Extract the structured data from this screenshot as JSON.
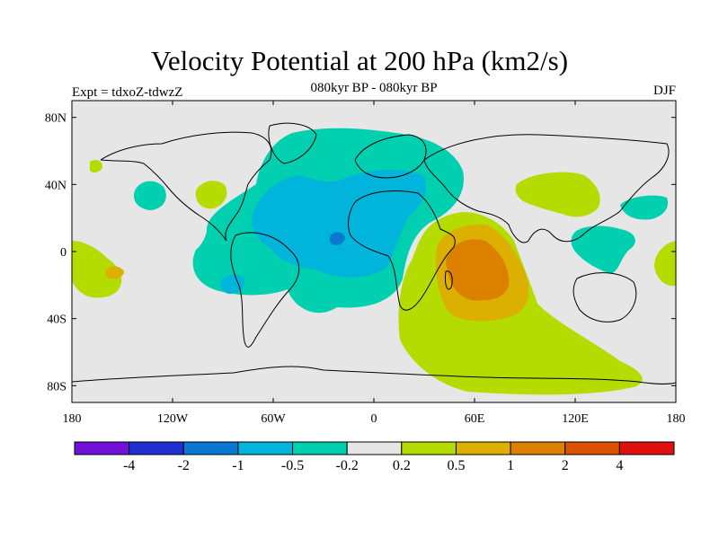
{
  "title": "Velocity Potential at 200 hPa (km2/s)",
  "subtitle": "080kyr BP - 080kyr BP",
  "experiment": "Expt = tdxoZ-tdwzZ",
  "season": "DJF",
  "map": {
    "projection": "cylindrical equidistant",
    "lon_range": [
      -180,
      180
    ],
    "lat_range": [
      -90,
      90
    ],
    "background_color": "#e6e6e6",
    "lat_ticks": [
      "80N",
      "40N",
      "0",
      "40S",
      "80S"
    ],
    "lon_ticks": [
      "180",
      "120W",
      "60W",
      "0",
      "60E",
      "120E",
      "180"
    ]
  },
  "colorbar": {
    "labels": [
      "-4",
      "-2",
      "-1",
      "-0.5",
      "-0.2",
      "0.2",
      "0.5",
      "1",
      "2",
      "4"
    ],
    "colors": [
      "#7010d8",
      "#2030d0",
      "#0a78d0",
      "#00b4dc",
      "#00d0b0",
      "#e6e6e6",
      "#b4dc00",
      "#dcb000",
      "#dc8000",
      "#dc5000",
      "#e01010"
    ]
  }
}
